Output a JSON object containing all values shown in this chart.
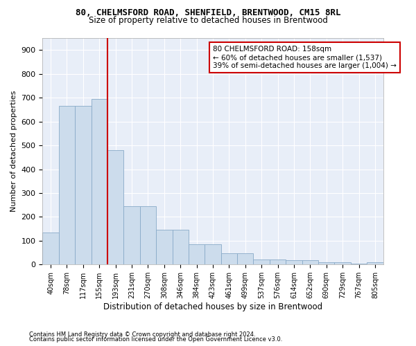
{
  "title1": "80, CHELMSFORD ROAD, SHENFIELD, BRENTWOOD, CM15 8RL",
  "title2": "Size of property relative to detached houses in Brentwood",
  "xlabel": "Distribution of detached houses by size in Brentwood",
  "ylabel": "Number of detached properties",
  "footnote1": "Contains HM Land Registry data © Crown copyright and database right 2024.",
  "footnote2": "Contains public sector information licensed under the Open Government Licence v3.0.",
  "bar_labels": [
    "40sqm",
    "78sqm",
    "117sqm",
    "155sqm",
    "193sqm",
    "231sqm",
    "270sqm",
    "308sqm",
    "346sqm",
    "384sqm",
    "423sqm",
    "461sqm",
    "499sqm",
    "537sqm",
    "576sqm",
    "614sqm",
    "652sqm",
    "690sqm",
    "729sqm",
    "767sqm",
    "805sqm"
  ],
  "bar_values": [
    135,
    665,
    665,
    695,
    480,
    245,
    245,
    145,
    145,
    85,
    85,
    47,
    47,
    22,
    22,
    17,
    17,
    11,
    10,
    5,
    10
  ],
  "annotation_line1": "80 CHELMSFORD ROAD: 158sqm",
  "annotation_line2": "← 60% of detached houses are smaller (1,537)",
  "annotation_line3": "39% of semi-detached houses are larger (1,004) →",
  "vline_x": 3.5,
  "bar_color": "#ccdcec",
  "bar_edge_color": "#88aac8",
  "vline_color": "#cc0000",
  "bg_color": "#e8eef8",
  "ylim_max": 950,
  "yticks": [
    0,
    100,
    200,
    300,
    400,
    500,
    600,
    700,
    800,
    900
  ],
  "title_fontsize": 9,
  "subtitle_fontsize": 8.5,
  "ylabel_fontsize": 8,
  "xlabel_fontsize": 8.5,
  "tick_fontsize": 7,
  "footnote_fontsize": 6
}
